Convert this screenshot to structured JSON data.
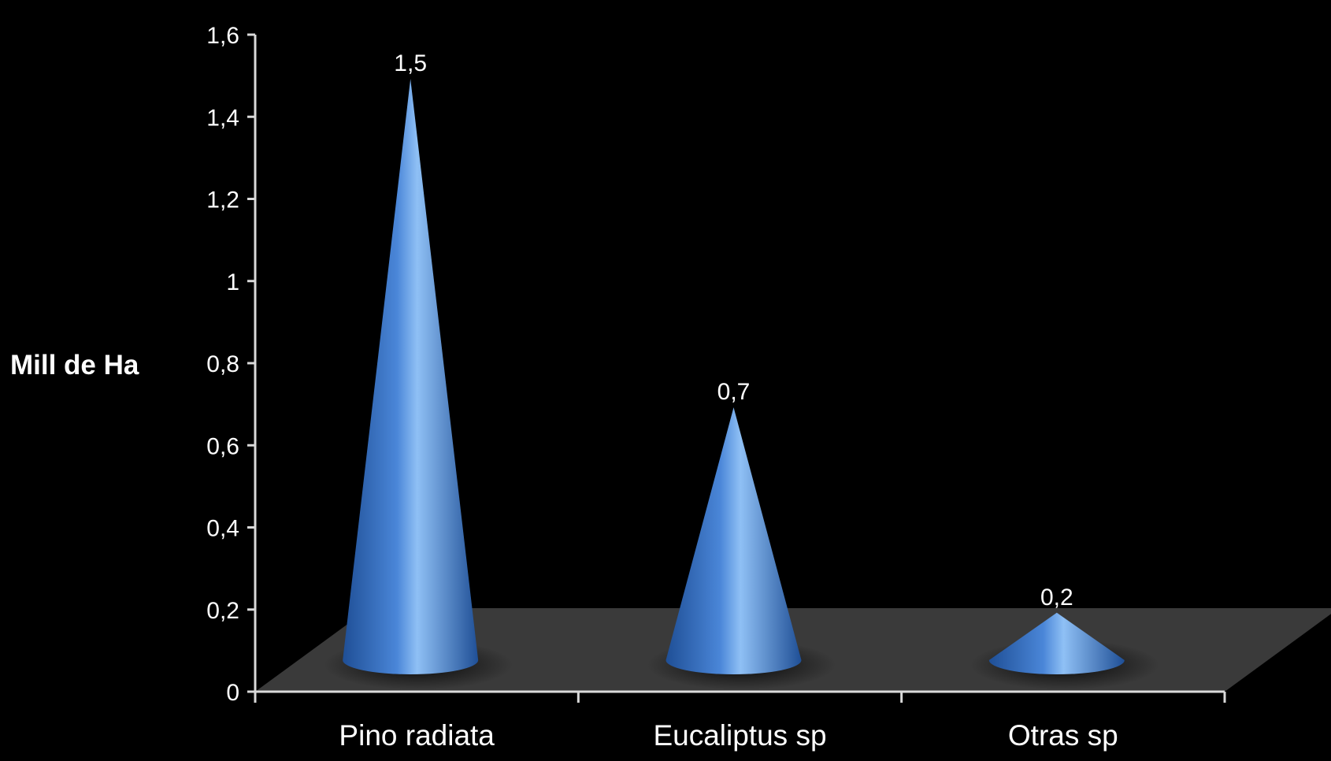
{
  "chart_data": {
    "type": "bar",
    "shape": "cone",
    "style": "3d",
    "categories": [
      "Pino radiata",
      "Eucaliptus sp",
      "Otras sp"
    ],
    "values": [
      1.5,
      0.7,
      0.2
    ],
    "data_labels": [
      "1,5",
      "0,7",
      "0,2"
    ],
    "title": "",
    "xlabel": "",
    "ylabel": "Mill de Ha",
    "ylim": [
      0,
      1.6
    ],
    "yticks": [
      0,
      0.2,
      0.4,
      0.6,
      0.8,
      1,
      1.2,
      1.4,
      1.6
    ],
    "ytick_labels": [
      "0",
      "0,2",
      "0,4",
      "0,6",
      "0,8",
      "1",
      "1,2",
      "1,4",
      "1,6"
    ],
    "grid": false,
    "legend": "none",
    "colors": {
      "background": "#000000",
      "floor": "#3a3a3a",
      "bar": "#4a86d8",
      "bar_dark": "#1f4f96",
      "bar_light": "#8fc0f5",
      "axis": "#d9d9d9",
      "text": "#ffffff"
    }
  }
}
